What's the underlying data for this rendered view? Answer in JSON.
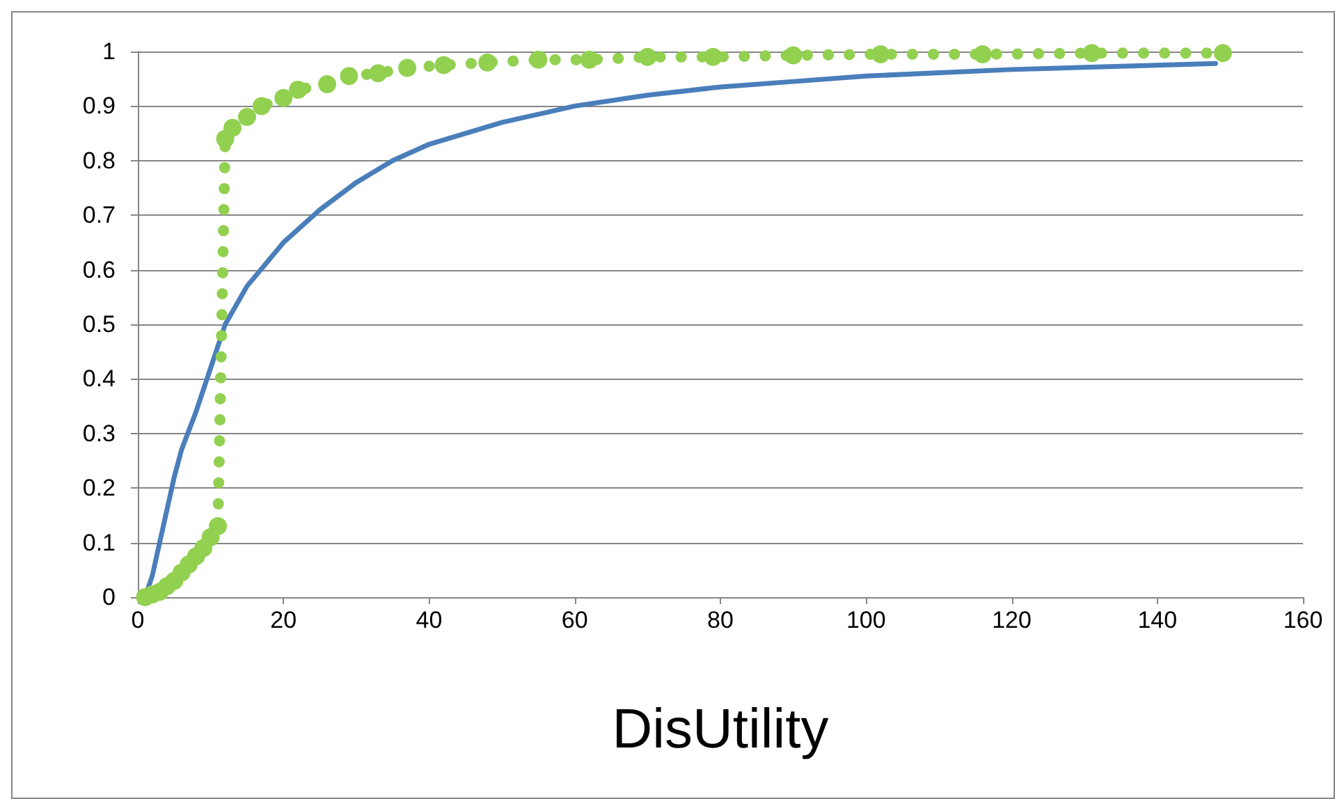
{
  "chart_data": {
    "type": "line",
    "xlabel": "DisUtility",
    "xlim": [
      0,
      160
    ],
    "xticks": [
      0,
      20,
      40,
      60,
      80,
      100,
      120,
      140,
      160
    ],
    "ylim": [
      0,
      1
    ],
    "yticks": [
      0,
      0.1,
      0.2,
      0.3,
      0.4,
      0.5,
      0.6,
      0.7,
      0.8,
      0.9,
      1
    ],
    "grid": "y",
    "series": [
      {
        "color": "#4a7ebb",
        "line_style": "solid",
        "marker": "none",
        "x": [
          1,
          2,
          3,
          4,
          5,
          6,
          8,
          10,
          12,
          15,
          20,
          25,
          30,
          35,
          40,
          50,
          60,
          70,
          80,
          90,
          100,
          120,
          148
        ],
        "values": [
          0,
          0.04,
          0.1,
          0.16,
          0.22,
          0.27,
          0.34,
          0.42,
          0.5,
          0.57,
          0.65,
          0.71,
          0.76,
          0.8,
          0.83,
          0.87,
          0.9,
          0.92,
          0.935,
          0.945,
          0.955,
          0.967,
          0.978
        ]
      },
      {
        "color": "#92d050",
        "line_style": "dotted",
        "marker": "circle",
        "x": [
          1,
          2,
          3,
          4,
          5,
          6,
          7,
          8,
          9,
          10,
          11,
          12,
          13,
          15,
          17,
          20,
          22,
          26,
          29,
          33,
          37,
          42,
          48,
          55,
          62,
          70,
          79,
          90,
          102,
          116,
          131,
          149
        ],
        "values": [
          0,
          0.005,
          0.01,
          0.02,
          0.03,
          0.045,
          0.06,
          0.075,
          0.09,
          0.11,
          0.13,
          0.84,
          0.86,
          0.88,
          0.9,
          0.915,
          0.93,
          0.94,
          0.955,
          0.96,
          0.97,
          0.975,
          0.98,
          0.985,
          0.985,
          0.99,
          0.99,
          0.993,
          0.995,
          0.995,
          0.997,
          0.997
        ]
      }
    ]
  }
}
